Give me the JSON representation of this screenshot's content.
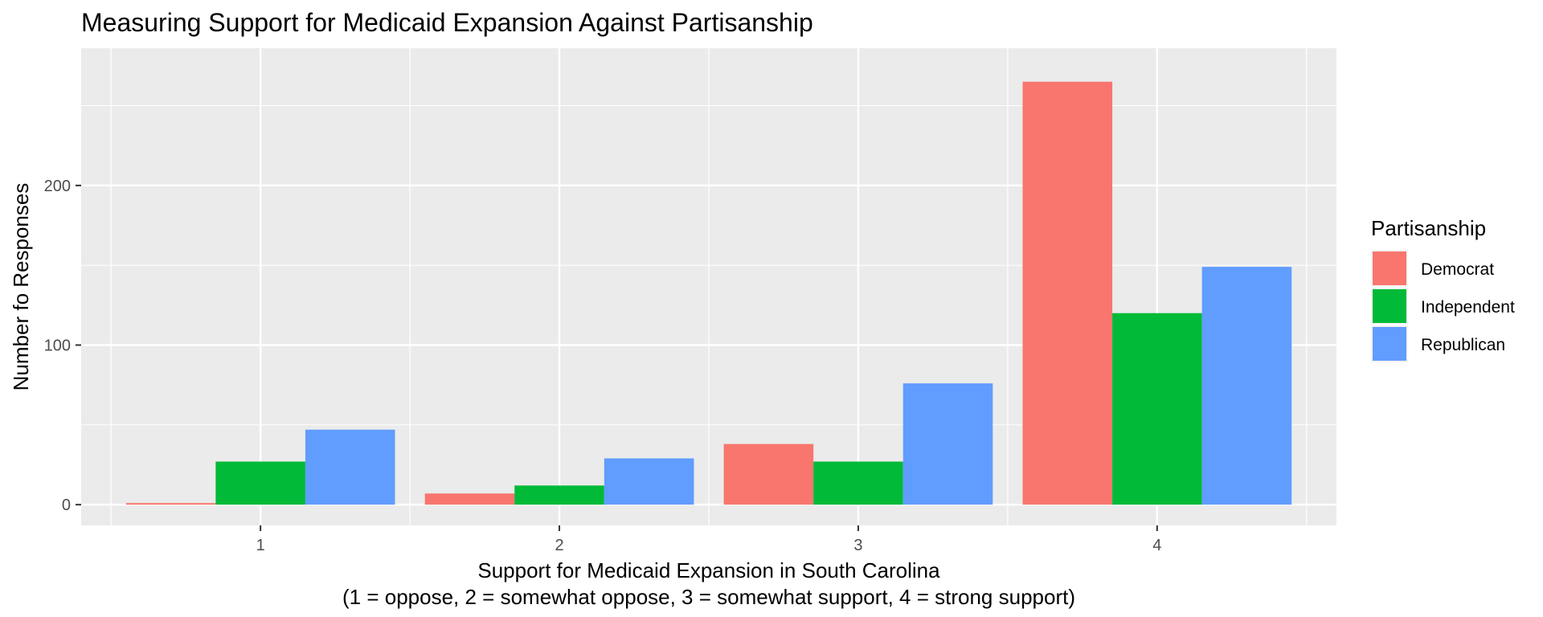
{
  "chart_data": {
    "type": "bar",
    "title": "Measuring Support for Medicaid Expansion Against Partisanship",
    "xlabel": "Support for Medicaid Expansion in South Carolina",
    "xlabel_line2": "(1 = oppose, 2 = somewhat oppose, 3 = somewhat support, 4 = strong support)",
    "ylabel": "Number fo Responses",
    "categories": [
      "1",
      "2",
      "3",
      "4"
    ],
    "yticks": [
      0,
      100,
      200
    ],
    "ylim": [
      -13,
      286
    ],
    "grid": true,
    "legend": {
      "title": "Partisanship",
      "position": "right"
    },
    "series": [
      {
        "name": "Democrat",
        "color": "#F8766D",
        "values": [
          1,
          7,
          38,
          265
        ]
      },
      {
        "name": "Independent",
        "color": "#00BA38",
        "values": [
          27,
          12,
          27,
          120
        ]
      },
      {
        "name": "Republican",
        "color": "#619CFF",
        "values": [
          47,
          29,
          76,
          149
        ]
      }
    ]
  }
}
